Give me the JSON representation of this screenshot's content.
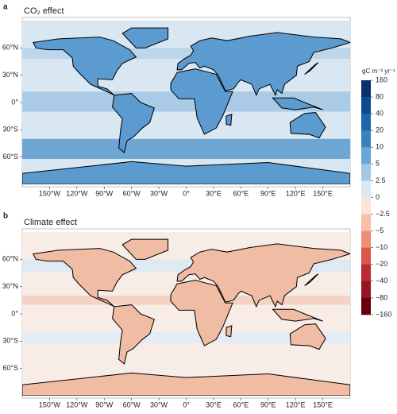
{
  "panels": [
    {
      "label": "a",
      "title": "CO₂ effect",
      "lat_ticks": [
        {
          "value": 60,
          "label": "60°N"
        },
        {
          "value": 30,
          "label": "30°N"
        },
        {
          "value": 0,
          "label": "0°"
        },
        {
          "value": -30,
          "label": "30°S"
        },
        {
          "value": -60,
          "label": "60°S"
        }
      ],
      "lon_ticks": [
        {
          "value": -150,
          "label": "150°W"
        },
        {
          "value": -120,
          "label": "120°W"
        },
        {
          "value": -90,
          "label": "90°W"
        },
        {
          "value": -60,
          "label": "60°W"
        },
        {
          "value": -30,
          "label": "30°W"
        },
        {
          "value": 0,
          "label": "0°"
        },
        {
          "value": 30,
          "label": "30°E"
        },
        {
          "value": 60,
          "label": "60°E"
        },
        {
          "value": 90,
          "label": "90°E"
        },
        {
          "value": 120,
          "label": "120°E"
        },
        {
          "value": 150,
          "label": "150°E"
        }
      ]
    },
    {
      "label": "b",
      "title": "Climate effect",
      "lat_ticks": [
        {
          "value": 60,
          "label": "60°N"
        },
        {
          "value": 30,
          "label": "30°N"
        },
        {
          "value": 0,
          "label": "0°"
        },
        {
          "value": -30,
          "label": "30°S"
        },
        {
          "value": -60,
          "label": "60°S"
        }
      ],
      "lon_ticks": [
        {
          "value": -150,
          "label": "150°W"
        },
        {
          "value": -120,
          "label": "120°W"
        },
        {
          "value": -90,
          "label": "90°W"
        },
        {
          "value": -60,
          "label": "60°W"
        },
        {
          "value": -30,
          "label": "30°W"
        },
        {
          "value": 0,
          "label": "0°"
        },
        {
          "value": 30,
          "label": "30°E"
        },
        {
          "value": 60,
          "label": "60°E"
        },
        {
          "value": 90,
          "label": "90°E"
        },
        {
          "value": 120,
          "label": "120°E"
        },
        {
          "value": 150,
          "label": "150°E"
        }
      ]
    }
  ],
  "xlim": [
    -180,
    180
  ],
  "ylim": [
    -90,
    90
  ],
  "colorbar": {
    "title": "gC m⁻² yr⁻¹",
    "ticks": [
      160,
      80,
      40,
      20,
      10,
      5,
      2.5,
      0,
      {
        "value": -2.5,
        "label": "−2.5"
      },
      {
        "value": -5,
        "label": "−5"
      },
      {
        "value": -10,
        "label": "−10"
      },
      {
        "value": -20,
        "label": "−20"
      },
      {
        "value": -40,
        "label": "−40"
      },
      {
        "value": -80,
        "label": "−80"
      },
      {
        "value": -160,
        "label": "−160"
      }
    ],
    "colors": [
      "#08306b",
      "#0d4a90",
      "#1f65ab",
      "#3a81c0",
      "#6aa6d4",
      "#a3c8e5",
      "#dbe8f3",
      "#fbe4d9",
      "#f5c0a8",
      "#ec8f74",
      "#da554a",
      "#bb2a32",
      "#951523",
      "#67000d"
    ]
  }
}
